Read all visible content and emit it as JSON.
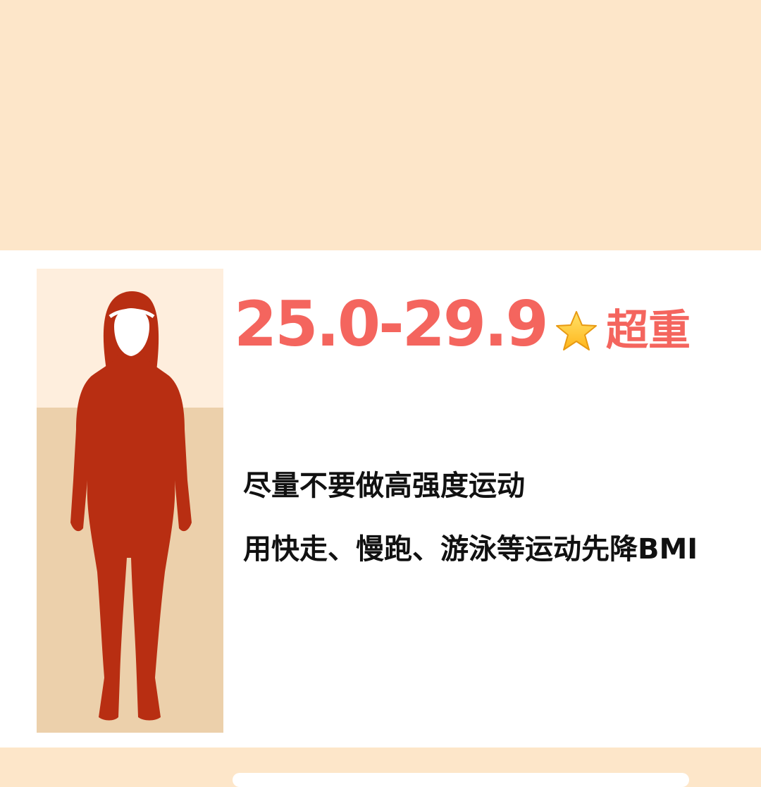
{
  "bmi_card": {
    "range": "25.0-29.9",
    "category_icon": "star-icon",
    "category": "超重",
    "advice_line_1": "尽量不要做高强度运动",
    "advice_line_2": "用快走、慢跑、游泳等运动先降BMI"
  },
  "colors": {
    "background_peach": "#fde6c9",
    "card_white": "#ffffff",
    "accent_coral": "#f4655e",
    "figure_red": "#b82e12",
    "panel_light": "#feeedd",
    "panel_tan": "#ecd0ab",
    "text_black": "#111111"
  },
  "figure": {
    "icon": "female-body-silhouette"
  }
}
